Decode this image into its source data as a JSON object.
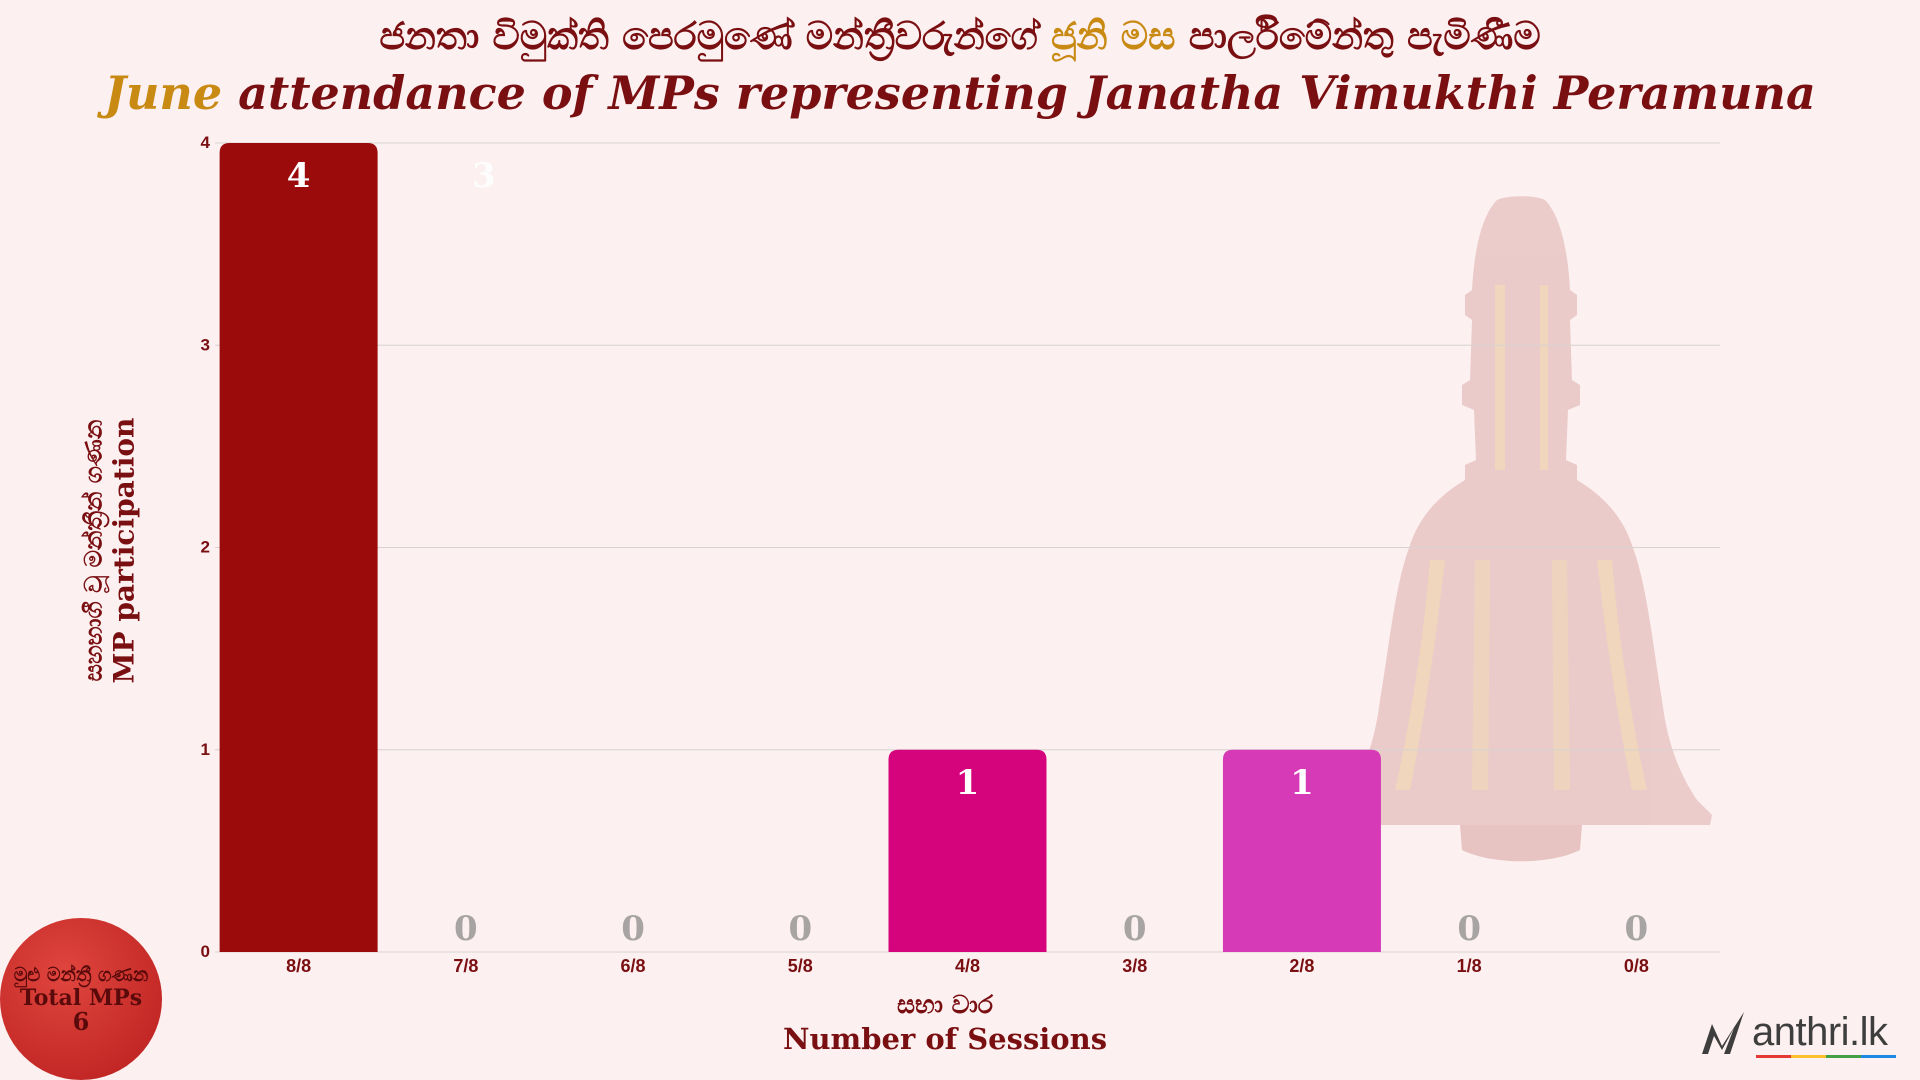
{
  "title": {
    "sinhala_before": "ජනතා විමුක්ති පෙරමුණේ මන්ත්‍රීවරුන්ගේ ",
    "sinhala_highlight": "ජූනි මස",
    "sinhala_after": " පාර්ලිමේන්තු පැමිණීම",
    "english_highlight": "June",
    "english_rest": " attendance of MPs representing Janatha Vimukthi Peramuna"
  },
  "y_axis": {
    "label_si": "සහභාගී වූ මන්ත්‍රීන් ගණන",
    "label_en": "MP participation"
  },
  "x_axis": {
    "label_si": "සභා වාර",
    "label_en": "Number of Sessions"
  },
  "total_badge": {
    "label_si": "මුළු මන්ත්‍රී ගණන",
    "label_en": "Total MPs",
    "value": "6"
  },
  "logo": {
    "text": "anthri.lk"
  },
  "colors": {
    "background": "#fcf0f0",
    "title": "#7a0f12",
    "highlight": "#c98a14",
    "bar_8": "#9b0b0b",
    "bar_4": "#d6047c",
    "bar_2": "#d63ab6",
    "zero_label": "#a8a4a4",
    "grid": "#d8d2d2"
  },
  "chart_data": {
    "type": "bar",
    "categories": [
      "8/8",
      "7/8",
      "6/8",
      "5/8",
      "4/8",
      "3/8",
      "2/8",
      "1/8",
      "0/8"
    ],
    "values": [
      4,
      0,
      0,
      0,
      1,
      0,
      1,
      0,
      0
    ],
    "ylim": [
      0,
      4
    ],
    "yticks": [
      0,
      1,
      2,
      3,
      4
    ],
    "ghost_label": "3",
    "grid": true,
    "legend": "none"
  }
}
